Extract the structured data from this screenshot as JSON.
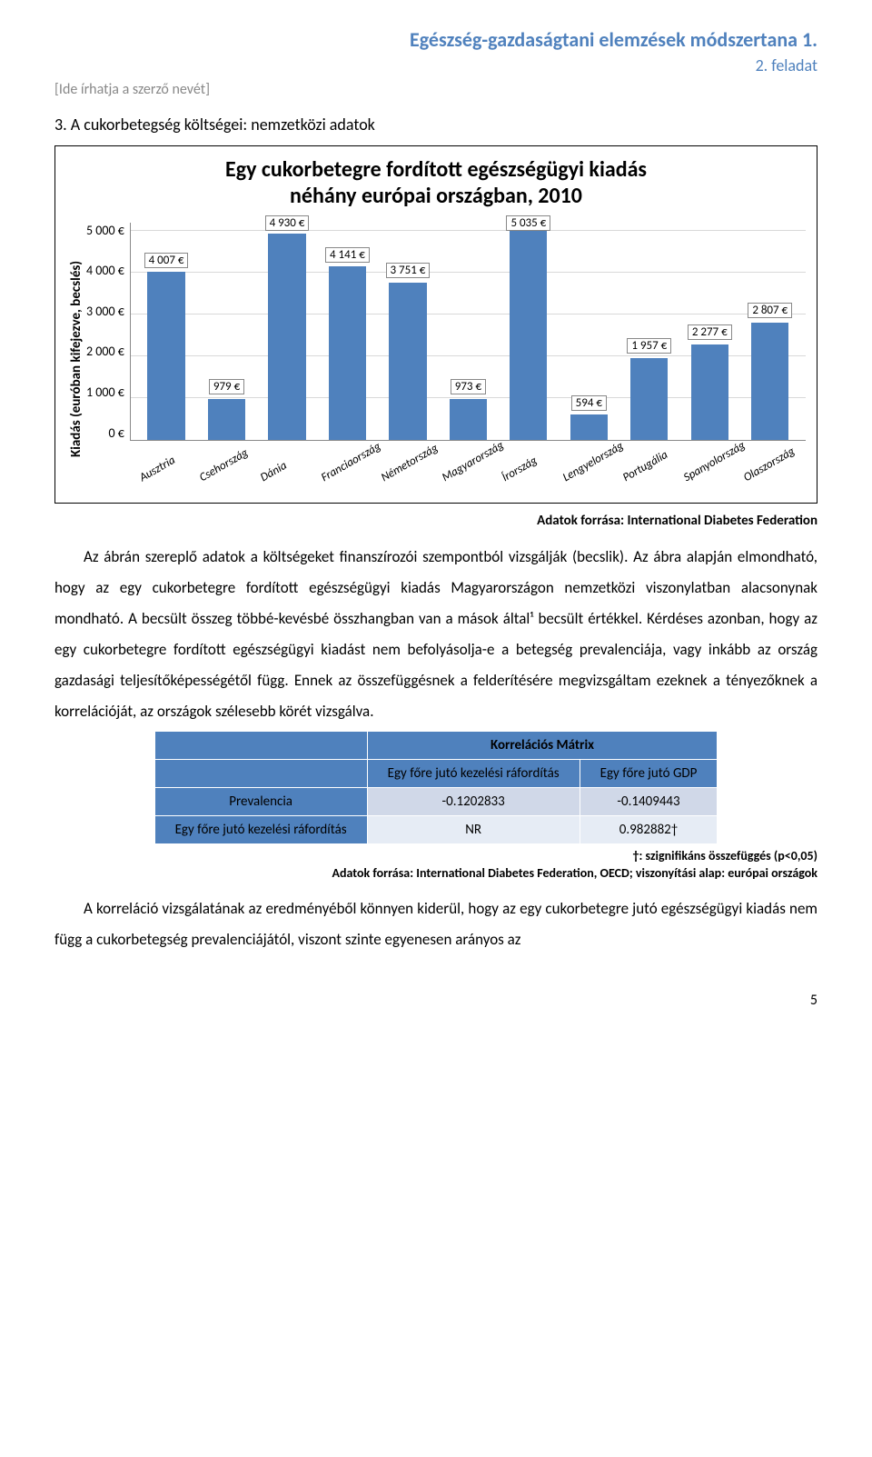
{
  "header": {
    "title": "Egészség-gazdaságtani elemzések módszertana 1.",
    "subtitle": "2. feladat",
    "author_placeholder": "[Ide írhatja a szerző nevét]"
  },
  "section_heading": "3.    A cukorbetegség költségei: nemzetközi adatok",
  "chart": {
    "title_line1": "Egy cukorbetegre fordított egészségügyi kiadás",
    "title_line2": "néhány európai országban, 2010",
    "y_axis_label": "Kiadás (euróban kifejezve, becslés)",
    "y_ticks": [
      "5 000 €",
      "4 000 €",
      "3 000 €",
      "2 000 €",
      "1 000 €",
      "0 €"
    ],
    "y_max": 5200,
    "bar_color": "#4f81bd",
    "grid_color": "#d9d9d9",
    "categories": [
      "Ausztria",
      "Csehország",
      "Dánia",
      "Franciaország",
      "Németország",
      "Magyarország",
      "Írország",
      "Lengyelország",
      "Portugália",
      "Spanyolország",
      "Olaszország"
    ],
    "values": [
      4007,
      979,
      4930,
      4141,
      3751,
      973,
      5035,
      594,
      1957,
      2277,
      2807
    ],
    "value_labels": [
      "4 007 €",
      "979 €",
      "4 930 €",
      "4 141 €",
      "3 751 €",
      "973 €",
      "5 035 €",
      "594 €",
      "1 957 €",
      "2 277 €",
      "2 807 €"
    ]
  },
  "source1": "Adatok forrása: International Diabetes Federation",
  "paragraph1": "Az ábrán szereplő adatok a költségeket finanszírozói szempontból vizsgálják (becslik). Az ábra alapján elmondható, hogy az egy cukorbetegre fordított egészségügyi kiadás Magyarországon nemzetközi viszonylatban alacsonynak mondható. A becsült összeg többé-kevésbé összhangban van a mások által¹ becsült értékkel. Kérdéses azonban, hogy az egy cukorbetegre fordított egészségügyi kiadást nem befolyásolja-e a betegség prevalenciája, vagy inkább az ország gazdasági teljesítőképességétől függ. Ennek az összefüggésnek a felderítésére megvizsgáltam ezeknek a tényezőknek a korrelációját, az országok szélesebb körét vizsgálva.",
  "corr_table": {
    "title": "Korrelációs Mátrix",
    "col1": "Egy főre jutó kezelési ráfordítás",
    "col2": "Egy főre jutó GDP",
    "rows": [
      {
        "label": "Prevalencia",
        "v1": "-0.1202833",
        "v2": "-0.1409443"
      },
      {
        "label": "Egy főre jutó kezelési ráfordítás",
        "v1": "NR",
        "v2": "0.982882†"
      }
    ],
    "note": "†: szignifikáns összefüggés (p<0,05)",
    "source": "Adatok forrása: International Diabetes Federation, OECD; viszonyítási alap: európai országok"
  },
  "paragraph2": "A korreláció vizsgálatának az eredményéből könnyen kiderül, hogy az egy cukorbetegre jutó egészségügyi kiadás nem függ a cukorbetegség prevalenciájától, viszont szinte egyenesen arányos az",
  "page_number": "5"
}
